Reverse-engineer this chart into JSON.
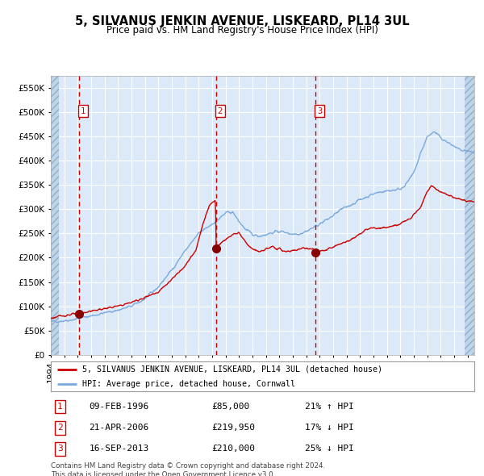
{
  "title": "5, SILVANUS JENKIN AVENUE, LISKEARD, PL14 3UL",
  "subtitle": "Price paid vs. HM Land Registry's House Price Index (HPI)",
  "legend_red": "5, SILVANUS JENKIN AVENUE, LISKEARD, PL14 3UL (detached house)",
  "legend_blue": "HPI: Average price, detached house, Cornwall",
  "footnote": "Contains HM Land Registry data © Crown copyright and database right 2024.\nThis data is licensed under the Open Government Licence v3.0.",
  "transactions": [
    {
      "num": 1,
      "date": "09-FEB-1996",
      "price": 85000,
      "hpi_rel": "21% ↑ HPI",
      "x_year": 1996.1
    },
    {
      "num": 2,
      "date": "21-APR-2006",
      "price": 219950,
      "hpi_rel": "17% ↓ HPI",
      "x_year": 2006.3
    },
    {
      "num": 3,
      "date": "16-SEP-2013",
      "price": 210000,
      "hpi_rel": "25% ↓ HPI",
      "x_year": 2013.7
    }
  ],
  "xmin": 1994.0,
  "xmax": 2025.5,
  "ymin": 0,
  "ymax": 575000,
  "yticks": [
    0,
    50000,
    100000,
    150000,
    200000,
    250000,
    300000,
    350000,
    400000,
    450000,
    500000,
    550000
  ],
  "ytick_labels": [
    "£0",
    "£50K",
    "£100K",
    "£150K",
    "£200K",
    "£250K",
    "£300K",
    "£350K",
    "£400K",
    "£450K",
    "£500K",
    "£550K"
  ],
  "background_color": "#dce9f8",
  "grid_color": "#ffffff",
  "red_line_color": "#cc0000",
  "blue_line_color": "#7aaadd",
  "dashed_line_color": "#cc0000",
  "marker_color": "#880000",
  "hpi_anchors_t": [
    1994.0,
    1995.0,
    1996.0,
    1997.0,
    1998.0,
    1999.0,
    2000.0,
    2001.0,
    2002.0,
    2003.0,
    2004.0,
    2005.0,
    2006.0,
    2006.5,
    2007.0,
    2007.5,
    2008.0,
    2008.5,
    2009.0,
    2009.5,
    2010.0,
    2010.5,
    2011.0,
    2011.5,
    2012.0,
    2012.5,
    2013.0,
    2013.5,
    2014.0,
    2014.5,
    2015.0,
    2015.5,
    2016.0,
    2016.5,
    2017.0,
    2017.5,
    2018.0,
    2018.5,
    2019.0,
    2019.5,
    2020.0,
    2020.5,
    2021.0,
    2021.5,
    2022.0,
    2022.5,
    2023.0,
    2023.5,
    2024.0,
    2024.5,
    2025.5
  ],
  "hpi_anchors_v": [
    68000,
    70000,
    74000,
    80000,
    86000,
    92000,
    100000,
    115000,
    140000,
    175000,
    215000,
    250000,
    270000,
    280000,
    292000,
    295000,
    275000,
    258000,
    248000,
    245000,
    248000,
    252000,
    255000,
    252000,
    249000,
    250000,
    255000,
    262000,
    270000,
    278000,
    287000,
    298000,
    305000,
    312000,
    320000,
    326000,
    332000,
    336000,
    338000,
    340000,
    342000,
    355000,
    375000,
    415000,
    450000,
    460000,
    448000,
    438000,
    430000,
    422000,
    415000
  ],
  "red_anchors_t": [
    1994.0,
    1994.5,
    1995.0,
    1995.5,
    1996.1,
    1997.0,
    1998.0,
    1999.0,
    2000.0,
    2001.0,
    2002.0,
    2003.0,
    2004.0,
    2004.8,
    2005.3,
    2005.8,
    2006.0,
    2006.25,
    2006.3,
    2006.4,
    2007.0,
    2007.5,
    2008.0,
    2008.5,
    2009.0,
    2009.5,
    2010.0,
    2010.5,
    2011.0,
    2011.5,
    2012.0,
    2012.5,
    2013.0,
    2013.5,
    2013.7,
    2013.9,
    2014.5,
    2015.0,
    2015.5,
    2016.0,
    2016.5,
    2017.0,
    2017.5,
    2018.0,
    2018.5,
    2019.0,
    2019.5,
    2020.0,
    2020.5,
    2021.0,
    2021.5,
    2022.0,
    2022.3,
    2022.5,
    2022.8,
    2023.0,
    2023.5,
    2024.0,
    2024.5,
    2025.5
  ],
  "red_anchors_v": [
    75000,
    78000,
    81000,
    83000,
    85000,
    90000,
    95000,
    100000,
    108000,
    118000,
    130000,
    155000,
    185000,
    215000,
    270000,
    308000,
    315000,
    318000,
    219950,
    225000,
    238000,
    248000,
    252000,
    232000,
    218000,
    212000,
    218000,
    222000,
    218000,
    212000,
    215000,
    218000,
    220000,
    218000,
    210000,
    212000,
    216000,
    222000,
    228000,
    234000,
    240000,
    250000,
    258000,
    262000,
    260000,
    263000,
    265000,
    270000,
    278000,
    290000,
    305000,
    338000,
    348000,
    345000,
    340000,
    336000,
    330000,
    325000,
    320000,
    315000
  ]
}
